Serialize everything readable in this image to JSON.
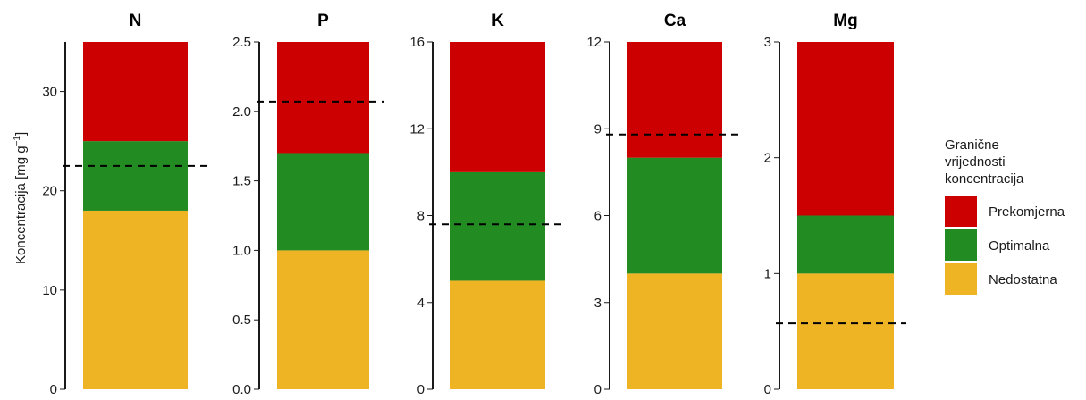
{
  "chart_data": {
    "type": "bar",
    "ylabel": "Koncentracija [mg g",
    "ylabel_sup": "−1",
    "ylabel_end": "]",
    "legend": {
      "title_lines": [
        "Granične",
        "vrijednosti",
        "koncentracija"
      ],
      "placement": "right",
      "items": [
        {
          "label": "Prekomjerna",
          "color": "#CC0000"
        },
        {
          "label": "Optimalna",
          "color": "#228B22"
        },
        {
          "label": "Nedostatna",
          "color": "#EEB424"
        }
      ]
    },
    "panels": [
      {
        "title": "N",
        "ylim": [
          0,
          35
        ],
        "ticks": [
          0,
          10,
          20,
          30
        ],
        "tick_labels": [
          "0",
          "10",
          "20",
          "30"
        ],
        "segments": [
          {
            "class": "Nedostatna",
            "from": 0,
            "to": 18
          },
          {
            "class": "Optimalna",
            "from": 18,
            "to": 25
          },
          {
            "class": "Prekomjerna",
            "from": 25,
            "to": 35
          }
        ],
        "measured": 22.5
      },
      {
        "title": "P",
        "ylim": [
          0,
          2.5
        ],
        "ticks": [
          0,
          0.5,
          1.0,
          1.5,
          2.0,
          2.5
        ],
        "tick_labels": [
          "0.0",
          "0.5",
          "1.0",
          "1.5",
          "2.0",
          "2.5"
        ],
        "segments": [
          {
            "class": "Nedostatna",
            "from": 0,
            "to": 1.0
          },
          {
            "class": "Optimalna",
            "from": 1.0,
            "to": 1.7
          },
          {
            "class": "Prekomjerna",
            "from": 1.7,
            "to": 2.5
          }
        ],
        "measured": 2.07
      },
      {
        "title": "K",
        "ylim": [
          0,
          16
        ],
        "ticks": [
          0,
          4,
          8,
          12,
          16
        ],
        "tick_labels": [
          "0",
          "4",
          "8",
          "12",
          "16"
        ],
        "segments": [
          {
            "class": "Nedostatna",
            "from": 0,
            "to": 5
          },
          {
            "class": "Optimalna",
            "from": 5,
            "to": 10
          },
          {
            "class": "Prekomjerna",
            "from": 10,
            "to": 16
          }
        ],
        "measured": 7.6
      },
      {
        "title": "Ca",
        "ylim": [
          0,
          12
        ],
        "ticks": [
          0,
          3,
          6,
          9,
          12
        ],
        "tick_labels": [
          "0",
          "3",
          "6",
          "9",
          "12"
        ],
        "segments": [
          {
            "class": "Nedostatna",
            "from": 0,
            "to": 4
          },
          {
            "class": "Optimalna",
            "from": 4,
            "to": 8
          },
          {
            "class": "Prekomjerna",
            "from": 8,
            "to": 12
          }
        ],
        "measured": 8.8
      },
      {
        "title": "Mg",
        "ylim": [
          0,
          3
        ],
        "ticks": [
          0,
          1,
          2,
          3
        ],
        "tick_labels": [
          "0",
          "1",
          "2",
          "3"
        ],
        "segments": [
          {
            "class": "Nedostatna",
            "from": 0,
            "to": 1.0
          },
          {
            "class": "Optimalna",
            "from": 1.0,
            "to": 1.5
          },
          {
            "class": "Prekomjerna",
            "from": 1.5,
            "to": 3
          }
        ],
        "measured": 0.57
      }
    ]
  }
}
